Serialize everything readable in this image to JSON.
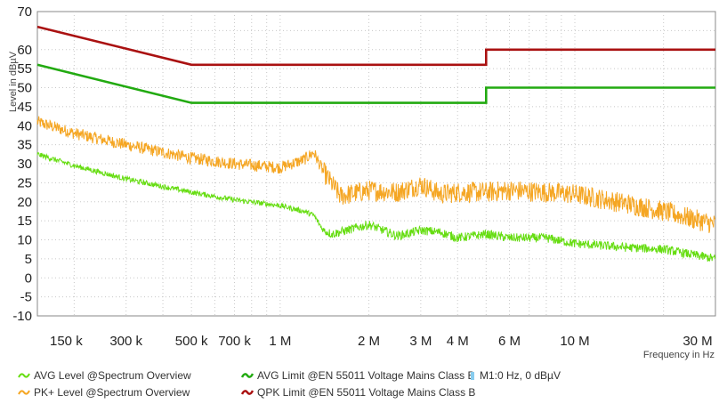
{
  "chart_data": {
    "type": "line",
    "title": "",
    "xlabel": "Frequency in Hz",
    "ylabel": "Level in dBµV",
    "x_scale": "log",
    "xlim": [
      150000,
      30000000
    ],
    "ylim": [
      -10,
      70
    ],
    "grid": true,
    "y_ticks": [
      "-10",
      "-5",
      "0",
      "5",
      "10",
      "15",
      "20",
      "25",
      "30",
      "35",
      "40",
      "45",
      "50",
      "55",
      "60",
      "70"
    ],
    "y_tick_values": [
      -10,
      -5,
      0,
      5,
      10,
      15,
      20,
      25,
      30,
      35,
      40,
      45,
      50,
      55,
      60,
      70
    ],
    "x_ticks": [
      "150 k",
      "300 k",
      "500 k",
      "700 k",
      "1 M",
      "2 M",
      "3 M",
      "4 M",
      "6 M",
      "10 M",
      "30 M"
    ],
    "x_tick_values": [
      150000,
      300000,
      500000,
      700000,
      1000000,
      2000000,
      3000000,
      4000000,
      6000000,
      10000000,
      30000000
    ],
    "series": [
      {
        "name": "PK+ Level @Spectrum Overview",
        "color": "#f5a623",
        "noise": 1.6,
        "x": [
          150000,
          200000,
          300000,
          400000,
          500000,
          700000,
          1000000,
          1200000,
          1300000,
          1400000,
          1600000,
          2000000,
          2500000,
          3000000,
          3500000,
          4000000,
          5000000,
          6000000,
          8000000,
          10000000,
          15000000,
          20000000,
          30000000
        ],
        "y": [
          41,
          38,
          35,
          33,
          31.5,
          30,
          29,
          31,
          33,
          28,
          21.5,
          23,
          22.5,
          24.5,
          22,
          22.5,
          22.5,
          23,
          22.5,
          22,
          19.5,
          17.5,
          14
        ]
      },
      {
        "name": "AVG Level @Spectrum Overview",
        "color": "#66dd11",
        "noise": 0.7,
        "x": [
          150000,
          200000,
          300000,
          400000,
          500000,
          700000,
          1000000,
          1200000,
          1300000,
          1400000,
          1500000,
          2000000,
          2500000,
          3000000,
          3500000,
          4000000,
          5000000,
          6000000,
          8000000,
          10000000,
          15000000,
          20000000,
          30000000
        ],
        "y": [
          32.5,
          29.5,
          26,
          24,
          22.5,
          20.5,
          19,
          17.5,
          16.5,
          12.5,
          11.5,
          14,
          11,
          12.5,
          12,
          10.5,
          11.5,
          10.5,
          10.5,
          9,
          8,
          7.5,
          5
        ]
      },
      {
        "name": "AVG Limit @EN 55011 Voltage Mains Class B",
        "color": "#22aa11",
        "noise": 0,
        "x": [
          150000,
          500000,
          5000000,
          5000000,
          30000000
        ],
        "y": [
          56,
          46,
          46,
          50,
          50
        ]
      },
      {
        "name": "QPK Limit @EN 55011 Voltage Mains Class B",
        "color": "#aa1111",
        "noise": 0,
        "x": [
          150000,
          500000,
          5000000,
          5000000,
          30000000
        ],
        "y": [
          66,
          56,
          56,
          60,
          60
        ]
      }
    ],
    "marker": {
      "label": "M1:0 Hz, 0 dBµV",
      "color": "#88ccee"
    }
  },
  "legend": {
    "avg_level": "AVG Level @Spectrum Overview",
    "pk_level": "PK+ Level @Spectrum Overview",
    "avg_limit": "AVG Limit @EN 55011 Voltage Mains Class B",
    "qpk_limit": "QPK Limit @EN 55011 Voltage Mains Class B",
    "marker": "M1:0 Hz, 0 dBµV"
  }
}
